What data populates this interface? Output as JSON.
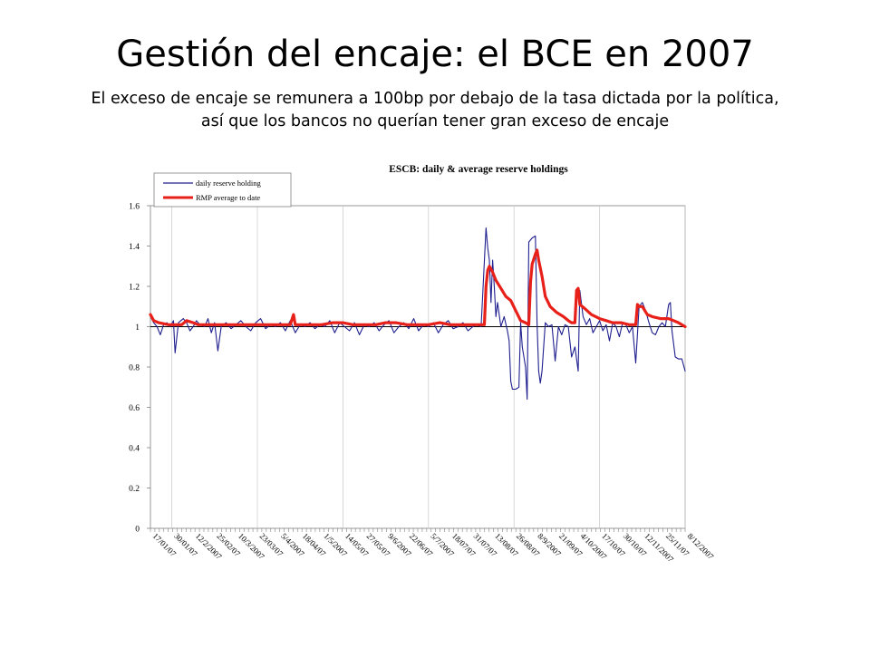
{
  "slide": {
    "title": "Gestión del encaje: el BCE en 2007",
    "subtitle_line1": "El exceso de encaje se remunera a 100bp por debajo de la tasa dictada por la política,",
    "subtitle_line2": "así que los bancos no querían tener gran exceso de encaje"
  },
  "chart_data": {
    "type": "line",
    "title": "ESCB: daily & average reserve holdings",
    "xlabel": "",
    "ylabel": "",
    "ylim": [
      0,
      1.6
    ],
    "yticks": [
      0,
      0.2,
      0.4,
      0.6,
      0.8,
      1,
      1.2,
      1.4,
      1.6
    ],
    "ytick_labels": [
      "0",
      "0.2",
      "0.4",
      "0.6",
      "0.8",
      "1",
      "1.2",
      "1.4",
      "1.6"
    ],
    "reference_line": 1,
    "grid": "vertical",
    "legend_position": "top-left",
    "x_range": [
      "17/01/07",
      "8/12/2007"
    ],
    "x_tick_labels": [
      "17/01/07",
      "30/01/07",
      "12/2/2007",
      "25/02/07",
      "10/3/2007",
      "23/03/07",
      "5/4/2007",
      "18/04/07",
      "1/5/2007",
      "14/05/07",
      "27/05/07",
      "9/6/2007",
      "22/06/07",
      "5/7/2007",
      "18/07/07",
      "31/07/07",
      "13/08/07",
      "26/08/07",
      "8/9/2007",
      "21/09/07",
      "4/10/2007",
      "17/10/07",
      "30/10/07",
      "12/11/2007",
      "25/11/07",
      "8/12/2007"
    ],
    "series": [
      {
        "name": "daily reserve holding",
        "color": "#1f1f8f",
        "points": [
          [
            "17/01/07",
            1.05
          ],
          [
            "19/01/07",
            1.02
          ],
          [
            "21/01/07",
            1.0
          ],
          [
            "23/01/07",
            0.96
          ],
          [
            "25/01/07",
            1.01
          ],
          [
            "27/01/07",
            1.02
          ],
          [
            "29/01/07",
            1.0
          ],
          [
            "31/01/07",
            1.03
          ],
          [
            "1/2/2007",
            0.87
          ],
          [
            "3/2/2007",
            1.02
          ],
          [
            "6/2/2007",
            1.04
          ],
          [
            "8/2/2007",
            1.02
          ],
          [
            "10/2/2007",
            0.98
          ],
          [
            "12/2/2007",
            1.0
          ],
          [
            "14/2/2007",
            1.03
          ],
          [
            "16/2/2007",
            1.01
          ],
          [
            "19/2/2007",
            1.0
          ],
          [
            "21/2/2007",
            1.04
          ],
          [
            "23/2/2007",
            0.97
          ],
          [
            "25/2/2007",
            1.02
          ],
          [
            "27/2/2007",
            0.88
          ],
          [
            "1/3/2007",
            1.0
          ],
          [
            "4/3/2007",
            1.02
          ],
          [
            "7/3/2007",
            0.99
          ],
          [
            "10/3/2007",
            1.01
          ],
          [
            "13/3/2007",
            1.03
          ],
          [
            "16/3/2007",
            1.0
          ],
          [
            "19/3/2007",
            0.98
          ],
          [
            "22/3/2007",
            1.02
          ],
          [
            "25/3/2007",
            1.04
          ],
          [
            "28/3/2007",
            0.99
          ],
          [
            "31/3/2007",
            1.01
          ],
          [
            "3/4/2007",
            1.0
          ],
          [
            "6/4/2007",
            1.02
          ],
          [
            "9/4/2007",
            0.98
          ],
          [
            "12/4/2007",
            1.03
          ],
          [
            "15/4/2007",
            0.97
          ],
          [
            "18/4/2007",
            1.01
          ],
          [
            "21/4/2007",
            1.0
          ],
          [
            "24/4/2007",
            1.02
          ],
          [
            "27/4/2007",
            0.99
          ],
          [
            "30/4/2007",
            1.01
          ],
          [
            "3/5/2007",
            1.0
          ],
          [
            "6/5/2007",
            1.03
          ],
          [
            "9/5/2007",
            0.97
          ],
          [
            "12/5/2007",
            1.02
          ],
          [
            "15/5/2007",
            1.0
          ],
          [
            "18/5/2007",
            0.98
          ],
          [
            "21/5/2007",
            1.02
          ],
          [
            "24/5/2007",
            0.96
          ],
          [
            "27/5/2007",
            1.01
          ],
          [
            "30/5/2007",
            1.0
          ],
          [
            "2/6/2007",
            1.02
          ],
          [
            "5/6/2007",
            0.98
          ],
          [
            "8/6/2007",
            1.01
          ],
          [
            "11/6/2007",
            1.03
          ],
          [
            "14/6/2007",
            0.97
          ],
          [
            "17/6/2007",
            1.0
          ],
          [
            "20/6/2007",
            1.02
          ],
          [
            "23/6/2007",
            0.99
          ],
          [
            "26/6/2007",
            1.04
          ],
          [
            "29/6/2007",
            0.98
          ],
          [
            "2/7/2007",
            1.01
          ],
          [
            "5/7/2007",
            1.0
          ],
          [
            "8/7/2007",
            1.02
          ],
          [
            "11/7/2007",
            0.97
          ],
          [
            "14/7/2007",
            1.01
          ],
          [
            "17/7/2007",
            1.03
          ],
          [
            "20/7/2007",
            0.99
          ],
          [
            "23/7/2007",
            1.0
          ],
          [
            "26/7/2007",
            1.02
          ],
          [
            "29/7/2007",
            0.98
          ],
          [
            "1/8/2007",
            1.0
          ],
          [
            "3/8/2007",
            1.01
          ],
          [
            "6/8/2007",
            1.0
          ],
          [
            "9/8/2007",
            1.49
          ],
          [
            "10/8/2007",
            1.39
          ],
          [
            "11/8/2007",
            1.33
          ],
          [
            "12/8/2007",
            1.12
          ],
          [
            "13/8/2007",
            1.33
          ],
          [
            "14/8/2007",
            1.2
          ],
          [
            "15/8/2007",
            1.05
          ],
          [
            "16/8/2007",
            1.12
          ],
          [
            "18/8/2007",
            1.0
          ],
          [
            "20/8/2007",
            1.05
          ],
          [
            "22/8/2007",
            0.98
          ],
          [
            "23/8/2007",
            0.93
          ],
          [
            "24/8/2007",
            0.73
          ],
          [
            "25/8/2007",
            0.69
          ],
          [
            "27/8/2007",
            0.69
          ],
          [
            "29/8/2007",
            0.7
          ],
          [
            "30/8/2007",
            1.02
          ],
          [
            "31/8/2007",
            0.9
          ],
          [
            "2/9/2007",
            0.8
          ],
          [
            "3/9/2007",
            0.64
          ],
          [
            "4/9/2007",
            1.42
          ],
          [
            "6/9/2007",
            1.44
          ],
          [
            "8/9/2007",
            1.45
          ],
          [
            "9/9/2007",
            1.02
          ],
          [
            "10/9/2007",
            0.78
          ],
          [
            "11/9/2007",
            0.72
          ],
          [
            "12/9/2007",
            0.78
          ],
          [
            "14/9/2007",
            1.02
          ],
          [
            "16/9/2007",
            1.0
          ],
          [
            "18/9/2007",
            1.01
          ],
          [
            "20/9/2007",
            0.83
          ],
          [
            "22/9/2007",
            1.0
          ],
          [
            "24/9/2007",
            0.96
          ],
          [
            "26/9/2007",
            1.01
          ],
          [
            "28/9/2007",
            1.0
          ],
          [
            "30/9/2007",
            0.85
          ],
          [
            "2/10/2007",
            0.9
          ],
          [
            "4/10/2007",
            0.78
          ],
          [
            "5/10/2007",
            1.18
          ],
          [
            "7/10/2007",
            1.05
          ],
          [
            "9/10/2007",
            1.01
          ],
          [
            "11/10/2007",
            1.04
          ],
          [
            "13/10/2007",
            0.97
          ],
          [
            "15/10/2007",
            1.0
          ],
          [
            "17/10/2007",
            1.03
          ],
          [
            "19/10/2007",
            0.98
          ],
          [
            "21/10/2007",
            1.01
          ],
          [
            "23/10/2007",
            0.93
          ],
          [
            "25/10/2007",
            1.02
          ],
          [
            "27/10/2007",
            1.0
          ],
          [
            "29/10/2007",
            0.95
          ],
          [
            "31/10/2007",
            1.02
          ],
          [
            "2/11/2007",
            1.01
          ],
          [
            "4/11/2007",
            0.97
          ],
          [
            "6/11/2007",
            1.0
          ],
          [
            "8/11/2007",
            0.82
          ],
          [
            "10/11/2007",
            1.1
          ],
          [
            "12/11/2007",
            1.12
          ],
          [
            "14/11/2007",
            1.08
          ],
          [
            "16/11/2007",
            1.02
          ],
          [
            "18/11/2007",
            0.97
          ],
          [
            "20/11/2007",
            0.96
          ],
          [
            "22/11/2007",
            1.0
          ],
          [
            "24/11/2007",
            1.02
          ],
          [
            "26/11/2007",
            1.0
          ],
          [
            "28/11/2007",
            1.11
          ],
          [
            "29/11/2007",
            1.12
          ],
          [
            "30/11/2007",
            0.98
          ],
          [
            "2/12/2007",
            0.85
          ],
          [
            "4/12/2007",
            0.84
          ],
          [
            "6/12/2007",
            0.84
          ],
          [
            "8/12/2007",
            0.78
          ]
        ]
      },
      {
        "name": "RMP average to date",
        "color": "#e8201a",
        "points": [
          [
            "17/01/07",
            1.06
          ],
          [
            "19/01/07",
            1.03
          ],
          [
            "22/01/07",
            1.02
          ],
          [
            "28/01/07",
            1.01
          ],
          [
            "5/02/07",
            1.01
          ],
          [
            "8/02/07",
            1.03
          ],
          [
            "12/02/07",
            1.02
          ],
          [
            "15/02/07",
            1.01
          ],
          [
            "25/02/07",
            1.01
          ],
          [
            "10/03/07",
            1.01
          ],
          [
            "23/03/07",
            1.01
          ],
          [
            "5/4/2007",
            1.01
          ],
          [
            "12/4/2007",
            1.01
          ],
          [
            "14/4/2007",
            1.06
          ],
          [
            "15/4/2007",
            1.01
          ],
          [
            "1/5/2007",
            1.01
          ],
          [
            "8/5/2007",
            1.02
          ],
          [
            "14/5/2007",
            1.02
          ],
          [
            "20/5/2007",
            1.01
          ],
          [
            "27/5/2007",
            1.01
          ],
          [
            "3/6/2007",
            1.01
          ],
          [
            "9/6/2007",
            1.02
          ],
          [
            "15/6/2007",
            1.02
          ],
          [
            "22/6/2007",
            1.01
          ],
          [
            "5/7/2007",
            1.01
          ],
          [
            "12/7/2007",
            1.02
          ],
          [
            "18/7/2007",
            1.01
          ],
          [
            "25/7/2007",
            1.01
          ],
          [
            "8/8/2007",
            1.01
          ],
          [
            "9/8/2007",
            1.2
          ],
          [
            "10/8/2007",
            1.28
          ],
          [
            "11/8/2007",
            1.3
          ],
          [
            "13/8/2007",
            1.27
          ],
          [
            "15/8/2007",
            1.23
          ],
          [
            "18/8/2007",
            1.19
          ],
          [
            "21/8/2007",
            1.15
          ],
          [
            "24/8/2007",
            1.13
          ],
          [
            "27/8/2007",
            1.08
          ],
          [
            "30/8/2007",
            1.03
          ],
          [
            "2/9/2007",
            1.02
          ],
          [
            "4/9/2007",
            1.01
          ],
          [
            "5/9/2007",
            1.22
          ],
          [
            "6/9/2007",
            1.31
          ],
          [
            "8/9/2007",
            1.36
          ],
          [
            "9/9/2007",
            1.38
          ],
          [
            "10/9/2007",
            1.33
          ],
          [
            "12/9/2007",
            1.25
          ],
          [
            "14/9/2007",
            1.15
          ],
          [
            "17/9/2007",
            1.1
          ],
          [
            "21/9/2007",
            1.07
          ],
          [
            "25/9/2007",
            1.05
          ],
          [
            "28/9/2007",
            1.03
          ],
          [
            "30/9/2007",
            1.02
          ],
          [
            "2/10/2007",
            1.02
          ],
          [
            "3/10/2007",
            1.18
          ],
          [
            "4/10/2007",
            1.19
          ],
          [
            "5/10/2007",
            1.11
          ],
          [
            "8/10/2007",
            1.09
          ],
          [
            "12/10/2007",
            1.06
          ],
          [
            "17/10/2007",
            1.04
          ],
          [
            "21/10/2007",
            1.03
          ],
          [
            "25/10/2007",
            1.02
          ],
          [
            "30/10/2007",
            1.02
          ],
          [
            "4/11/2007",
            1.01
          ],
          [
            "8/11/2007",
            1.01
          ],
          [
            "9/11/2007",
            1.11
          ],
          [
            "10/11/2007",
            1.1
          ],
          [
            "12/11/2007",
            1.1
          ],
          [
            "15/11/2007",
            1.06
          ],
          [
            "18/11/2007",
            1.05
          ],
          [
            "23/11/2007",
            1.04
          ],
          [
            "28/11/2007",
            1.04
          ],
          [
            "1/12/2007",
            1.03
          ],
          [
            "4/12/2007",
            1.02
          ],
          [
            "8/12/2007",
            1.0
          ]
        ]
      }
    ]
  }
}
